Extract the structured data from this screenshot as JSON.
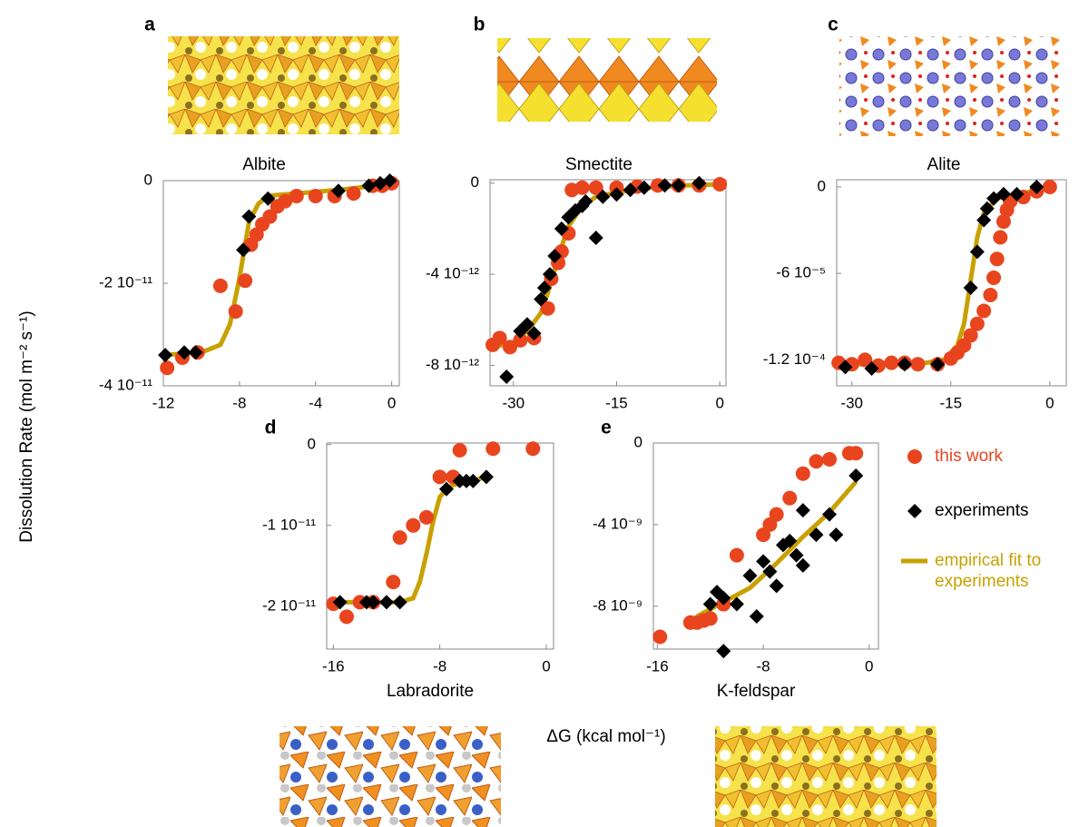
{
  "y_label": "Dissolution Rate (mol m⁻² s⁻¹)",
  "x_label": "ΔG (kcal mol⁻¹)",
  "chart_data": [
    {
      "type": "scatter",
      "label": "a",
      "title": "Albite",
      "xlim": [
        -12,
        0.4
      ],
      "ylim": [
        -4e-11,
        0
      ],
      "xticks": [
        -12,
        -8,
        -4,
        0
      ],
      "yticks": [
        0,
        {
          "value": -2e-11,
          "label": "-2 10⁻¹¹"
        },
        {
          "value": -4e-11,
          "label": "-4 10⁻¹¹"
        }
      ],
      "series": [
        {
          "type": "scatter",
          "marker": "circle",
          "color": "#e8451e",
          "x": [
            -11.8,
            -11.0,
            -10.2,
            -8.2,
            -9.0,
            -7.7,
            -7.4,
            -7.1,
            -6.8,
            -6.4,
            -6.0,
            -5.6,
            -5.0,
            -4.0,
            -3.0,
            -2.0,
            -1.0,
            -0.5,
            0
          ],
          "values": [
            -3.65e-11,
            -3.45e-11,
            -3.35e-11,
            -2.55e-11,
            -2.05e-11,
            -1.95e-11,
            -1.25e-11,
            -1.05e-11,
            -8.5e-12,
            -7e-12,
            -5e-12,
            -4e-12,
            -3e-12,
            -3e-12,
            -3e-12,
            -2.5e-12,
            -1e-12,
            -1e-12,
            -5e-13
          ]
        },
        {
          "type": "scatter",
          "marker": "diamond",
          "color": "#000000",
          "x": [
            -11.9,
            -10.9,
            -10.3,
            -7.8,
            -7.5,
            -6.5,
            -2.8,
            -1.2,
            -0.6,
            -0.1
          ],
          "values": [
            -3.4e-11,
            -3.35e-11,
            -3.35e-11,
            -1.35e-11,
            -7e-12,
            -3.5e-12,
            -2e-12,
            -1e-12,
            -5e-13,
            0
          ]
        },
        {
          "type": "line",
          "color": "#c8a100",
          "x": [
            -12,
            -10,
            -9,
            -8.5,
            -8,
            -7.5,
            -7,
            -6.5,
            -6,
            -5,
            -4,
            -2,
            0
          ],
          "values": [
            -3.4e-11,
            -3.35e-11,
            -3.2e-11,
            -2.8e-11,
            -1.9e-11,
            -8e-12,
            -4.5e-12,
            -3e-12,
            -2.8e-12,
            -2.5e-12,
            -2.2e-12,
            -1.5e-12,
            -5e-13
          ]
        }
      ]
    },
    {
      "type": "scatter",
      "label": "b",
      "title": "Smectite",
      "xlim": [
        -33.4,
        0.9
      ],
      "ylim": [
        -8.9e-12,
        1.5e-13
      ],
      "xticks": [
        -30,
        -15,
        0
      ],
      "yticks": [
        0,
        {
          "value": -4e-12,
          "label": "-4 10⁻¹²"
        },
        {
          "value": -8e-12,
          "label": "-8 10⁻¹²"
        }
      ],
      "series": [
        {
          "type": "scatter",
          "marker": "circle",
          "color": "#e8451e",
          "x": [
            -33,
            -32,
            -30.5,
            -29,
            -27,
            -25,
            -24.5,
            -23.5,
            -23,
            -22,
            -21.5,
            -20,
            -18,
            -15,
            -12,
            -9,
            -6,
            -3,
            0
          ],
          "values": [
            -7.1e-12,
            -6.8e-12,
            -7.2e-12,
            -6.9e-12,
            -6.8e-12,
            -5.5e-12,
            -4.2e-12,
            -3.5e-12,
            -3e-12,
            -2.2e-12,
            -3e-13,
            -2e-13,
            -2e-13,
            -2e-13,
            -1.5e-13,
            -1e-13,
            -1e-13,
            -1e-13,
            -5e-14
          ]
        },
        {
          "type": "scatter",
          "marker": "diamond",
          "color": "#000000",
          "x": [
            -31,
            -29,
            -28,
            -27,
            -26,
            -25.5,
            -24.7,
            -24,
            -23,
            -22,
            -21,
            -20,
            -19.5,
            -18,
            -17,
            -15,
            -13,
            -11,
            -8,
            -6,
            -3
          ],
          "values": [
            -8.5e-12,
            -6.5e-12,
            -6.2e-12,
            -6.6e-12,
            -5.1e-12,
            -4.6e-12,
            -4e-12,
            -3.2e-12,
            -2e-12,
            -1.5e-12,
            -1.2e-12,
            -1e-12,
            -8e-13,
            -2.4e-12,
            -6e-13,
            -5e-13,
            -3e-13,
            -2e-13,
            -1e-13,
            -1e-13,
            0
          ]
        },
        {
          "type": "line",
          "color": "#c8a100",
          "x": [
            -33,
            -30,
            -28,
            -26,
            -25,
            -24,
            -23,
            -22,
            -20,
            -18,
            -15,
            -10,
            -5,
            0
          ],
          "values": [
            -7.2e-12,
            -7e-12,
            -6.5e-12,
            -5.7e-12,
            -4.8e-12,
            -3.8e-12,
            -2.8e-12,
            -1.9e-12,
            -1e-12,
            -6e-13,
            -4e-13,
            -2e-13,
            -1e-13,
            -5e-14
          ]
        }
      ]
    },
    {
      "type": "scatter",
      "label": "c",
      "title": "Alite",
      "xlim": [
        -32.3,
        2.5
      ],
      "ylim": [
        -0.000138,
        5e-06
      ],
      "xticks": [
        -30,
        -15,
        0
      ],
      "yticks": [
        0,
        {
          "value": -6e-05,
          "label": "-6 10⁻⁵"
        },
        {
          "value": -0.00012,
          "label": "-1.2 10⁻⁴"
        }
      ],
      "series": [
        {
          "type": "scatter",
          "marker": "circle",
          "color": "#e8451e",
          "x": [
            -32,
            -30,
            -28,
            -26,
            -24,
            -22,
            -20,
            -17,
            -15,
            -14,
            -13,
            -12,
            -11,
            -10,
            -9,
            -8.5,
            -8,
            -7.5,
            -7,
            -6.5,
            -6,
            -4,
            -2,
            0
          ],
          "values": [
            -0.000122,
            -0.000123,
            -0.00012,
            -0.000124,
            -0.000122,
            -0.000122,
            -0.000123,
            -0.000123,
            -0.000119,
            -0.000115,
            -0.00011,
            -0.000103,
            -9.5e-05,
            -8.6e-05,
            -7.5e-05,
            -6.3e-05,
            -5e-05,
            -3.5e-05,
            -2.4e-05,
            -1.6e-05,
            -1e-05,
            -7e-06,
            -3e-06,
            0
          ]
        },
        {
          "type": "scatter",
          "marker": "diamond",
          "color": "#000000",
          "x": [
            -31,
            -27,
            -22,
            -17,
            -12,
            -11,
            -10,
            -9.5,
            -8.5,
            -7,
            -5,
            -2
          ],
          "values": [
            -0.000125,
            -0.000126,
            -0.000123,
            -0.000123,
            -7e-05,
            -4.5e-05,
            -2.3e-05,
            -1.5e-05,
            -8e-06,
            -5e-06,
            -5e-06,
            0
          ]
        },
        {
          "type": "line",
          "color": "#c8a100",
          "x": [
            -32,
            -20,
            -16,
            -14,
            -13,
            -12,
            -11,
            -10,
            -8,
            -5,
            0
          ],
          "values": [
            -0.000123,
            -0.000123,
            -0.00012,
            -0.00011,
            -9.5e-05,
            -6.5e-05,
            -3.5e-05,
            -1.8e-05,
            -8e-06,
            -5e-06,
            -1e-06
          ]
        }
      ]
    },
    {
      "type": "scatter",
      "label": "d",
      "title": "Labradorite",
      "xlim": [
        -16.5,
        0.55
      ],
      "ylim": [
        -2.53e-11,
        2e-13
      ],
      "xticks": [
        -16,
        -8,
        0
      ],
      "yticks": [
        0,
        {
          "value": -1e-11,
          "label": "-1 10⁻¹¹"
        },
        {
          "value": -2e-11,
          "label": "-2 10⁻¹¹"
        }
      ],
      "series": [
        {
          "type": "scatter",
          "marker": "circle",
          "color": "#e8451e",
          "x": [
            -16,
            -15,
            -14,
            -13,
            -11.5,
            -11,
            -10,
            -9,
            -8,
            -7,
            -6.5,
            -4,
            -1
          ],
          "values": [
            -1.97e-11,
            -2.13e-11,
            -1.95e-11,
            -1.95e-11,
            -1.7e-11,
            -1.15e-11,
            -1e-11,
            -9e-12,
            -4e-12,
            -4e-12,
            -7e-13,
            -5e-13,
            -5e-13
          ]
        },
        {
          "type": "scatter",
          "marker": "diamond",
          "color": "#000000",
          "x": [
            -15.5,
            -13.5,
            -13,
            -12,
            -11,
            -7.5,
            -6.5,
            -6,
            -5.5,
            -4.5
          ],
          "values": [
            -1.95e-11,
            -1.95e-11,
            -1.95e-11,
            -1.95e-11,
            -1.95e-11,
            -5.5e-12,
            -4.5e-12,
            -4.5e-12,
            -4.5e-12,
            -4e-12
          ]
        },
        {
          "type": "line",
          "color": "#c8a100",
          "x": [
            -16,
            -11,
            -10,
            -9.5,
            -9,
            -8.5,
            -8,
            -7.5,
            -7,
            -6,
            -4.5
          ],
          "values": [
            -1.95e-11,
            -1.95e-11,
            -1.9e-11,
            -1.7e-11,
            -1.35e-11,
            -9.5e-12,
            -6.5e-12,
            -5.5e-12,
            -5e-12,
            -4.7e-12,
            -4e-12
          ]
        }
      ]
    },
    {
      "type": "scatter",
      "label": "e",
      "title": "K-feldspar",
      "legend": "right",
      "xlim": [
        -16.3,
        0.7
      ],
      "ylim": [
        -1.01e-08,
        0
      ],
      "xticks": [
        -16,
        -8,
        0
      ],
      "yticks": [
        0,
        {
          "value": -4e-09,
          "label": "-4 10⁻⁹"
        },
        {
          "value": -8e-09,
          "label": "-8 10⁻⁹"
        }
      ],
      "series": [
        {
          "name": "this work",
          "type": "scatter",
          "marker": "circle",
          "color": "#e8451e",
          "x": [
            -15.8,
            -13.5,
            -13,
            -12.5,
            -12,
            -11,
            -10,
            -8,
            -7.5,
            -7,
            -6,
            -5,
            -4,
            -3,
            -1.5,
            -1
          ],
          "values": [
            -9.5e-09,
            -8.8e-09,
            -8.8e-09,
            -8.7e-09,
            -8.6e-09,
            -7.9e-09,
            -5.5e-09,
            -4.5e-09,
            -4e-09,
            -3.5e-09,
            -2.7e-09,
            -1.5e-09,
            -9e-10,
            -8e-10,
            -5e-10,
            -5e-10
          ]
        },
        {
          "name": "experiments",
          "type": "scatter",
          "marker": "diamond",
          "color": "#000000",
          "x": [
            -11,
            -12,
            -11.5,
            -11,
            -10,
            -9,
            -8.5,
            -8,
            -7.5,
            -7,
            -6.5,
            -6,
            -5.5,
            -5,
            -4,
            -3,
            -2.5,
            -1,
            -5
          ],
          "values": [
            -1.02e-08,
            -7.9e-09,
            -7.3e-09,
            -7.6e-09,
            -7.9e-09,
            -6.5e-09,
            -8.5e-09,
            -5.8e-09,
            -6.3e-09,
            -7e-09,
            -5e-09,
            -4.8e-09,
            -5.5e-09,
            -6e-09,
            -4.5e-09,
            -3.5e-09,
            -4.5e-09,
            -1.6e-09,
            -3.3e-09
          ]
        },
        {
          "name": "empirical fit to experiments",
          "type": "line",
          "color": "#c8a100",
          "x": [
            -13,
            -11,
            -9,
            -7,
            -5,
            -3,
            -1
          ],
          "values": [
            -8.5e-09,
            -7.8e-09,
            -7.1e-09,
            -5.9e-09,
            -4.6e-09,
            -3.4e-09,
            -1.9e-09
          ]
        }
      ]
    }
  ]
}
